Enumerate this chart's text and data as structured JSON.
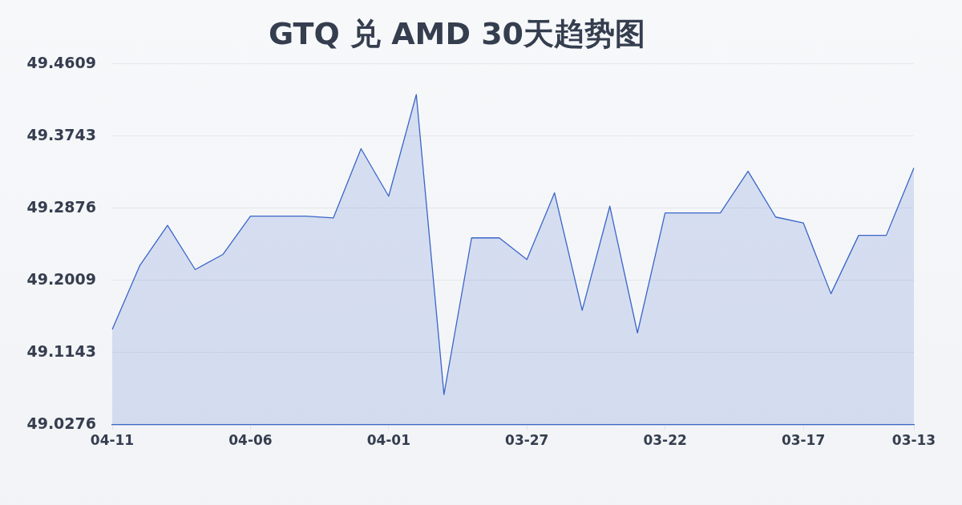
{
  "chart_data": {
    "type": "area",
    "title": "GTQ 兑 AMD 30天趋势图",
    "categories": [
      "04-11",
      null,
      null,
      null,
      null,
      "04-06",
      null,
      null,
      null,
      null,
      "04-01",
      null,
      null,
      null,
      null,
      "03-27",
      null,
      null,
      null,
      null,
      "03-22",
      null,
      null,
      null,
      null,
      "03-17",
      null,
      null,
      null,
      "03-13"
    ],
    "color": "#3a66c8",
    "values": [
      49.142,
      49.219,
      49.267,
      49.214,
      49.232,
      49.278,
      49.278,
      49.278,
      49.276,
      49.359,
      49.302,
      49.424,
      49.064,
      49.252,
      49.252,
      49.226,
      49.306,
      49.165,
      49.29,
      49.138,
      49.282,
      49.282,
      49.282,
      49.332,
      49.277,
      49.27,
      49.185,
      49.255,
      49.255,
      49.336
    ],
    "ylim": [
      49.0276,
      49.4609
    ],
    "yticks": [
      49.0276,
      49.1143,
      49.2009,
      49.2876,
      49.3743,
      49.4609
    ],
    "grid": "y",
    "marker": "none",
    "line_style": "solid"
  }
}
